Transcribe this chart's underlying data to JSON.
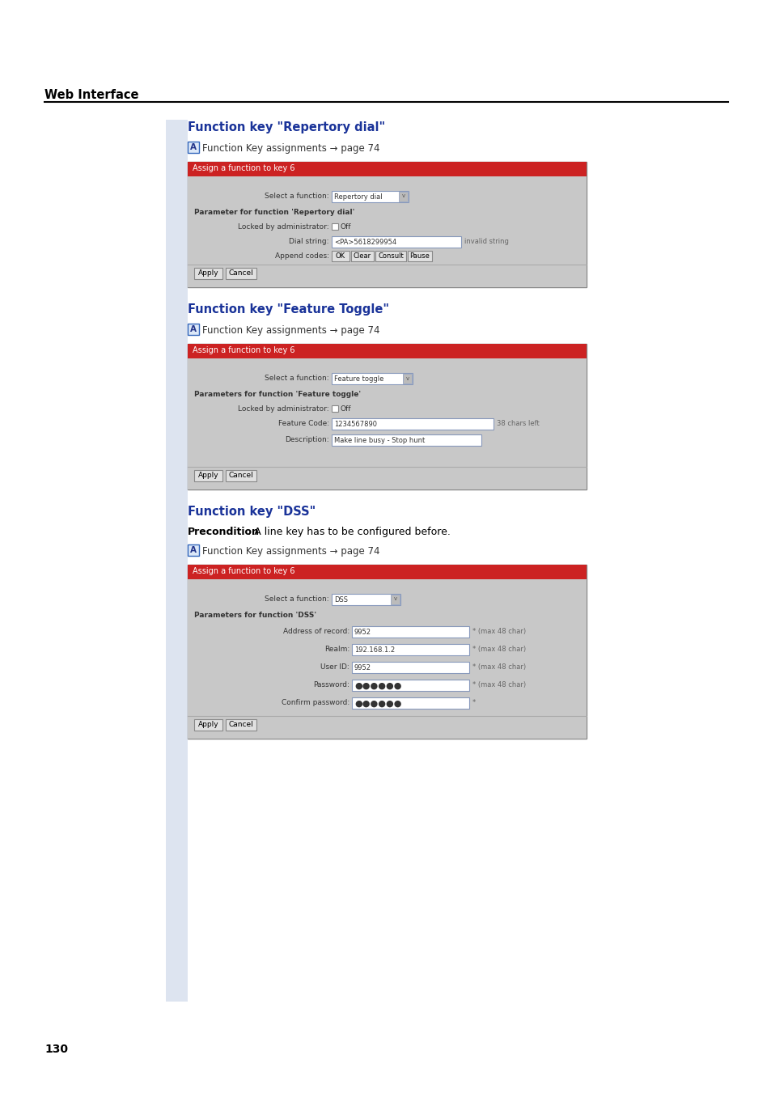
{
  "bg_color": "#ffffff",
  "sidebar_color": "#dde4f0",
  "header_text": "Web Interface",
  "page_number": "130",
  "section1_title": "Function key \"Repertory dial\"",
  "section2_title": "Function key \"Feature Toggle\"",
  "section3_title": "Function key \"DSS\"",
  "title_color": "#1a3399",
  "note_text": "Function Key assignments → page 74",
  "precondition_label": "Precondition",
  "precondition_rest": ": A line key has to be configured before.",
  "dialog_header_color": "#cc2222",
  "dialog_header_text_color": "#ffffff",
  "dialog_body_bg": "#c8c8c8",
  "dialog_border_color": "#888888",
  "dialog_title": "Assign a function to key 6",
  "input_bg": "#ffffff",
  "input_border": "#8899bb",
  "button_bg": "#e0e0e0",
  "button_border": "#888888",
  "checkbox_bg": "#ffffff",
  "checkbox_border": "#888888"
}
